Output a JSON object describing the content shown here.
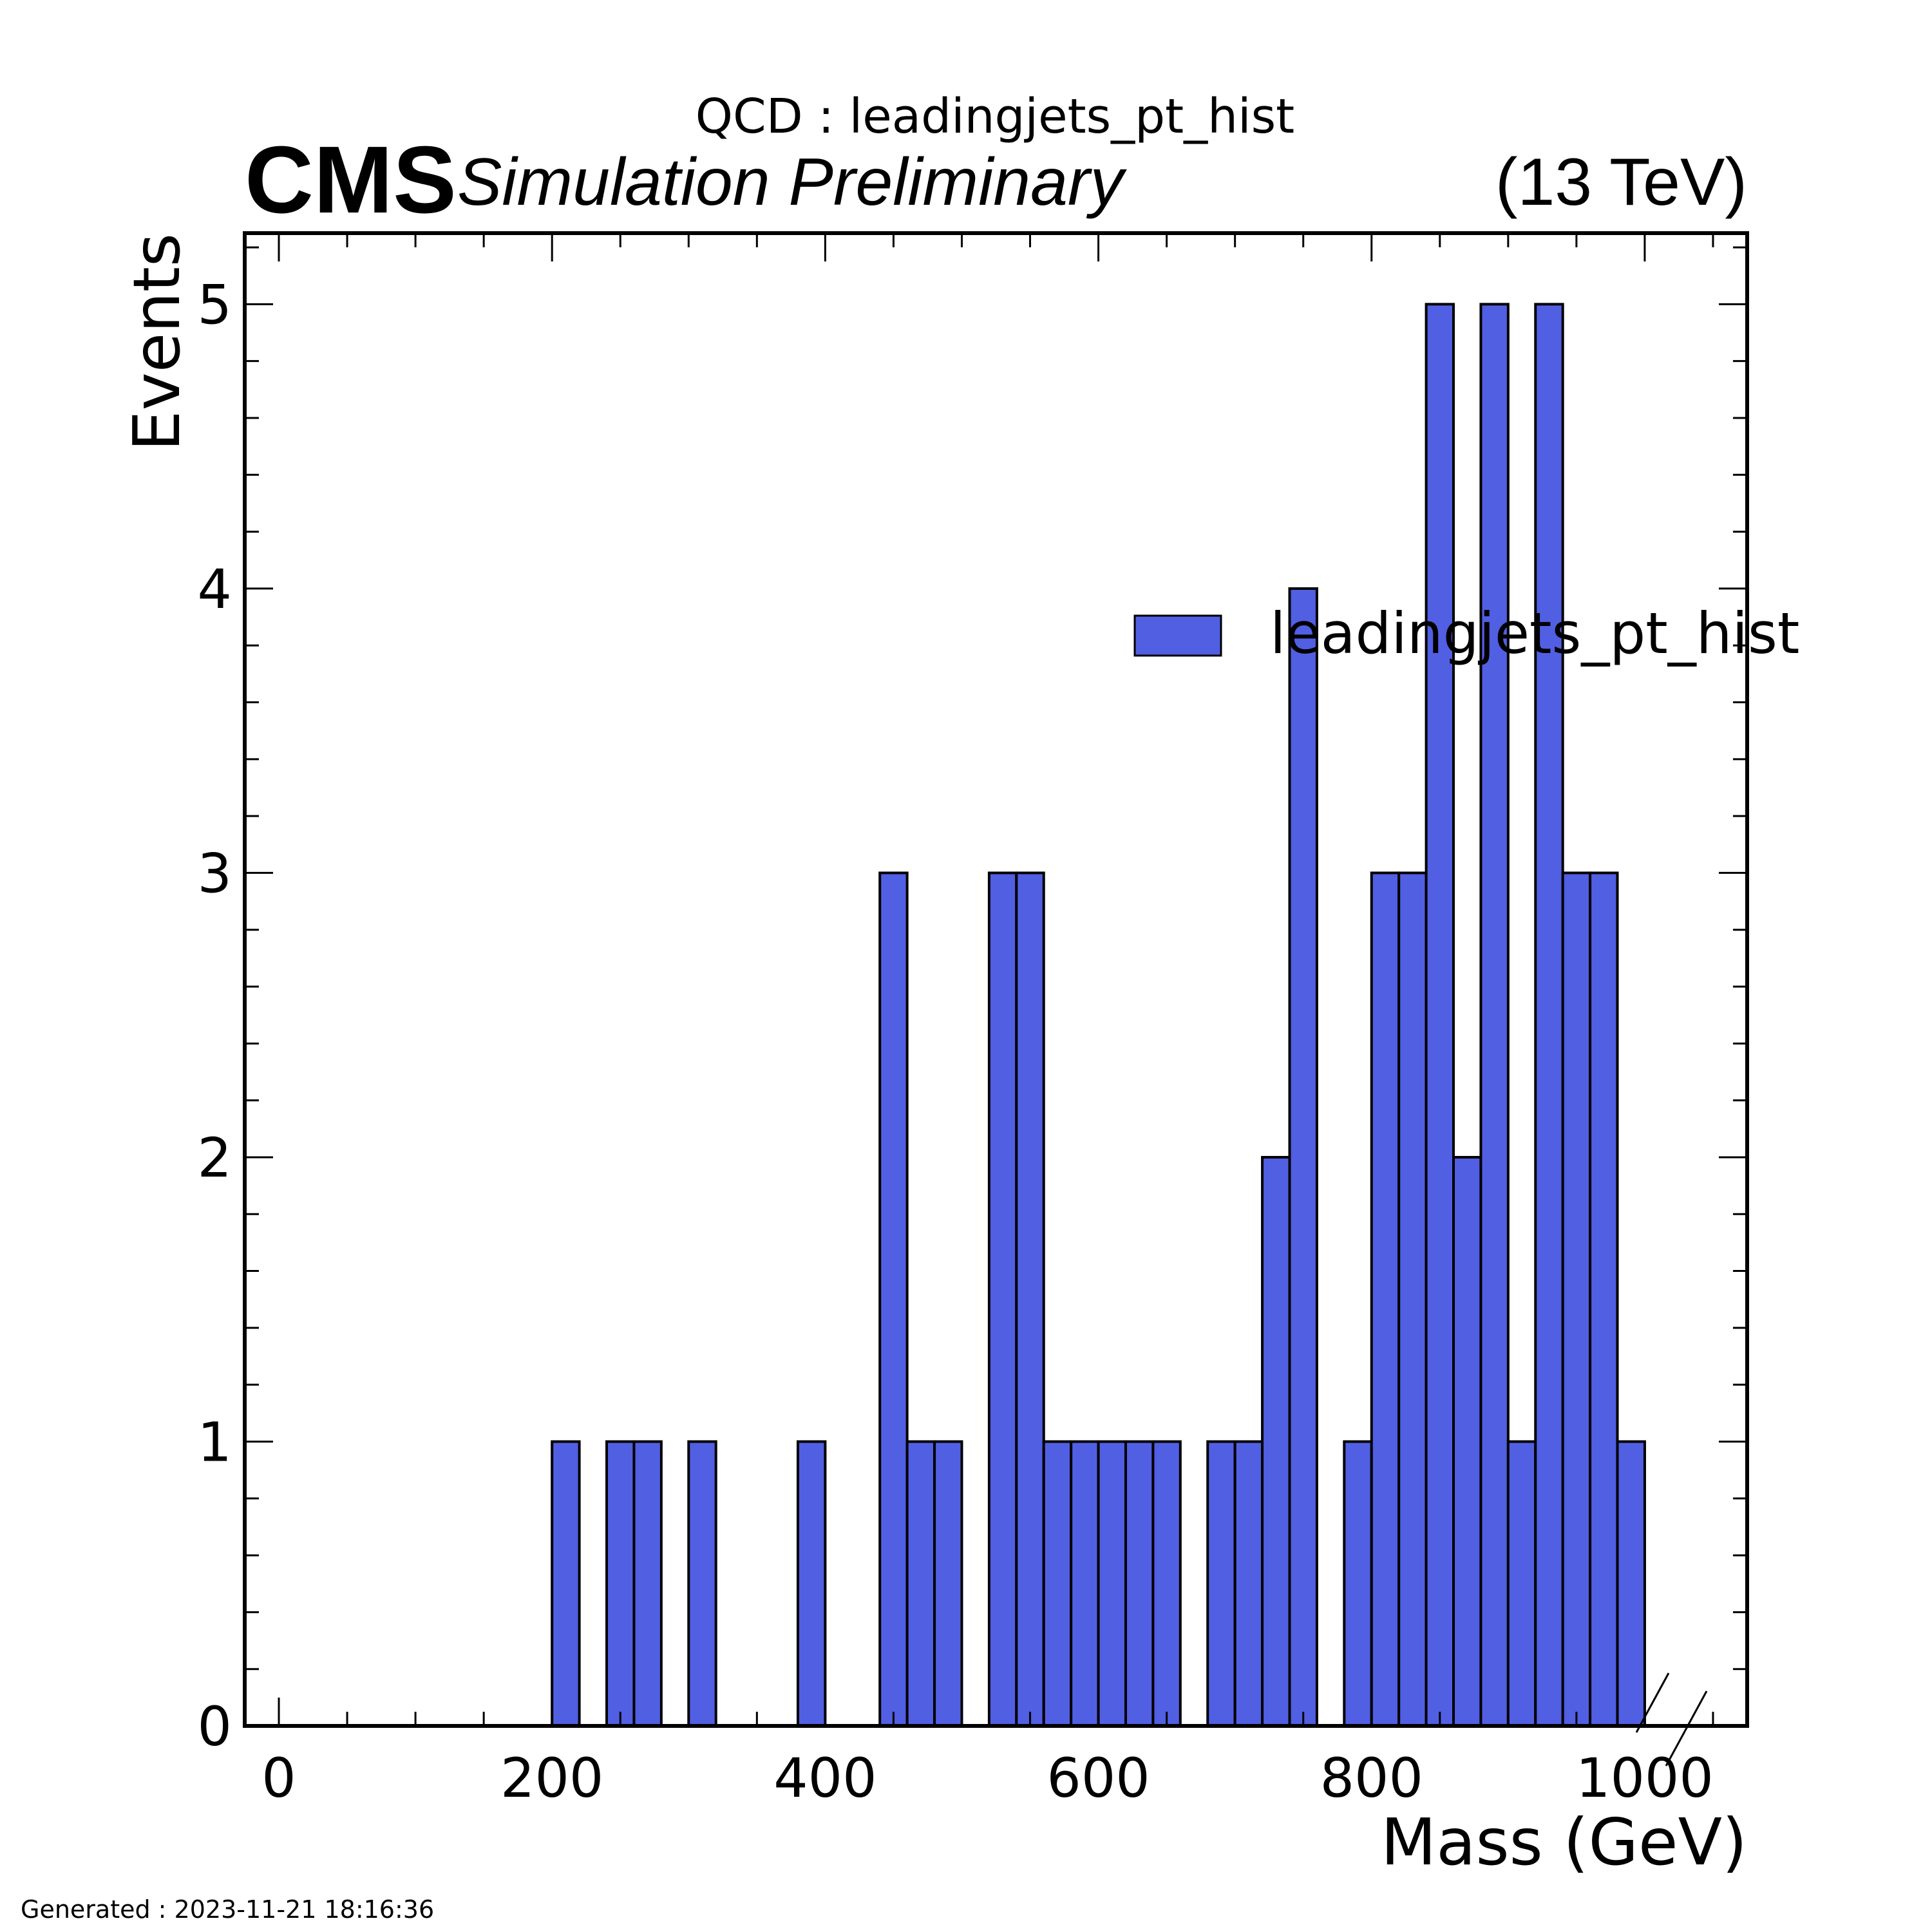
{
  "header": {
    "title": "QCD : leadingjets_pt_hist",
    "experiment": "CMS",
    "status": "Simulation Preliminary",
    "energy": "(13 TeV)"
  },
  "footer": {
    "generated": "Generated : 2023-11-21 18:16:36"
  },
  "colors": {
    "fill": "#515fe2",
    "edge": "#000000"
  },
  "chart_data": {
    "type": "bar",
    "title": "QCD : leadingjets_pt_hist",
    "xlabel": "Mass (GeV)",
    "ylabel": "Events",
    "xlim": [
      -25,
      1075
    ],
    "ylim": [
      0,
      5.25
    ],
    "xticks": [
      0,
      200,
      400,
      600,
      800,
      1000
    ],
    "yticks": [
      0,
      1,
      2,
      3,
      4,
      5
    ],
    "grid": false,
    "legend_position": "upper-right",
    "bin_width": 20,
    "bin_edges_start": 0,
    "series": [
      {
        "name": "leadingjets_pt_hist",
        "values": [
          0,
          0,
          0,
          0,
          0,
          0,
          0,
          0,
          0,
          0,
          1,
          0,
          1,
          1,
          0,
          1,
          0,
          0,
          0,
          1,
          0,
          0,
          3,
          1,
          1,
          0,
          3,
          3,
          1,
          1,
          1,
          1,
          1,
          0,
          1,
          1,
          2,
          4,
          0,
          1,
          3,
          3,
          5,
          2,
          5,
          1,
          5,
          3,
          3,
          1,
          0,
          0,
          0
        ]
      }
    ]
  }
}
